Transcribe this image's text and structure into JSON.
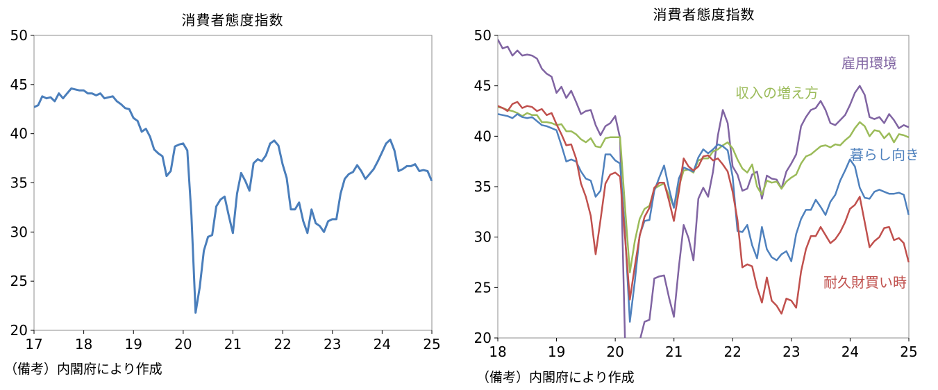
{
  "chart_data": [
    {
      "type": "line",
      "title": "消費者態度指数",
      "xlabel": "",
      "ylabel": "",
      "ylim": [
        20,
        50
      ],
      "xlim": [
        17,
        25
      ],
      "y_ticks": [
        "50",
        "45",
        "40",
        "35",
        "30",
        "25",
        "20"
      ],
      "x_ticks": [
        "17",
        "18",
        "19",
        "20",
        "21",
        "22",
        "23",
        "24",
        "25"
      ],
      "grid": false,
      "legend": "none",
      "series": [
        {
          "color": "#4a7ebb",
          "x_start": 17.0,
          "x_step": 0.0833,
          "values": [
            42.7,
            42.9,
            43.8,
            43.6,
            43.7,
            43.3,
            44.1,
            43.6,
            44.1,
            44.6,
            44.5,
            44.4,
            44.4,
            44.1,
            44.1,
            43.9,
            44.1,
            43.6,
            43.7,
            43.8,
            43.3,
            43.0,
            42.6,
            42.5,
            41.6,
            41.3,
            40.2,
            40.5,
            39.7,
            38.4,
            38.0,
            37.7,
            35.7,
            36.2,
            38.7,
            38.9,
            39.0,
            38.3,
            31.7,
            21.8,
            24.4,
            28.1,
            29.5,
            29.7,
            32.6,
            33.3,
            33.6,
            31.7,
            29.9,
            33.9,
            36.0,
            35.2,
            34.2,
            37.0,
            37.4,
            37.2,
            37.8,
            39.0,
            39.3,
            38.8,
            36.9,
            35.5,
            32.3,
            32.3,
            33.0,
            31.1,
            29.9,
            32.3,
            30.9,
            30.6,
            30.0,
            31.1,
            31.3,
            31.3,
            33.9,
            35.4,
            35.9,
            36.1,
            36.8,
            36.2,
            35.4,
            35.9,
            36.4,
            37.2,
            38.1,
            39.0,
            39.4,
            38.3,
            36.2,
            36.4,
            36.7,
            36.7,
            36.9,
            36.2,
            36.3,
            36.2,
            35.2
          ]
        }
      ],
      "footnote": "（備考）内閣府により作成"
    },
    {
      "type": "line",
      "title": "消費者態度指数",
      "xlabel": "",
      "ylabel": "",
      "ylim": [
        20,
        50
      ],
      "xlim": [
        18,
        25
      ],
      "y_ticks": [
        "50",
        "45",
        "40",
        "35",
        "30",
        "25",
        "20"
      ],
      "x_ticks": [
        "18",
        "19",
        "20",
        "21",
        "22",
        "23",
        "24",
        "25"
      ],
      "grid": false,
      "legend": "inline labels",
      "series": [
        {
          "name": "雇用環境",
          "color": "#8064a2",
          "x_start": 18.0,
          "x_step": 0.0833,
          "values": [
            49.6,
            48.7,
            48.9,
            48.0,
            48.5,
            48.0,
            48.1,
            48.0,
            47.7,
            46.7,
            46.2,
            45.9,
            44.3,
            44.9,
            43.8,
            44.5,
            43.4,
            42.2,
            42.5,
            42.6,
            41.1,
            40.1,
            41.0,
            41.3,
            42.0,
            39.8,
            19.8,
            16.5,
            18.3,
            19.7,
            21.6,
            21.8,
            25.9,
            26.1,
            26.2,
            24.0,
            22.1,
            27.0,
            31.2,
            29.9,
            27.7,
            33.8,
            34.9,
            34.0,
            36.5,
            40.1,
            42.6,
            41.3,
            37.0,
            36.2,
            34.6,
            34.8,
            36.2,
            36.5,
            33.8,
            36.1,
            35.8,
            35.7,
            34.8,
            36.5,
            37.3,
            38.2,
            41.0,
            41.9,
            42.6,
            42.8,
            43.5,
            42.6,
            41.3,
            41.1,
            41.6,
            42.1,
            43.1,
            44.3,
            45.0,
            44.1,
            41.9,
            41.7,
            41.9,
            41.3,
            42.2,
            41.6,
            40.8,
            41.1,
            40.9
          ]
        },
        {
          "name": "収入の増え方",
          "color": "#9bbb59",
          "x_start": 18.0,
          "x_step": 0.0833,
          "values": [
            42.9,
            42.8,
            42.6,
            42.5,
            42.3,
            42.0,
            42.3,
            42.1,
            42.1,
            41.4,
            41.4,
            41.3,
            41.1,
            41.2,
            40.5,
            40.5,
            40.2,
            39.7,
            39.4,
            39.8,
            39.0,
            38.9,
            39.8,
            39.9,
            39.9,
            39.9,
            33.0,
            26.5,
            29.6,
            31.8,
            32.8,
            33.1,
            34.8,
            35.1,
            35.3,
            34.1,
            33.0,
            35.0,
            36.6,
            36.7,
            36.4,
            37.6,
            37.8,
            37.8,
            38.5,
            38.7,
            39.1,
            39.4,
            38.8,
            37.7,
            36.8,
            36.4,
            37.2,
            35.0,
            34.2,
            35.6,
            35.4,
            35.5,
            34.8,
            35.5,
            35.9,
            36.2,
            37.3,
            38.0,
            38.2,
            38.6,
            39.0,
            39.1,
            38.9,
            39.2,
            39.1,
            39.6,
            40.0,
            40.8,
            41.4,
            41.0,
            40.0,
            40.6,
            40.5,
            39.8,
            40.3,
            39.4,
            40.2,
            40.1,
            39.9
          ]
        },
        {
          "name": "暮らし向き",
          "color": "#4f81bd",
          "x_start": 18.0,
          "x_step": 0.0833,
          "values": [
            42.2,
            42.1,
            42.0,
            41.8,
            42.2,
            41.9,
            41.8,
            41.9,
            41.5,
            41.1,
            41.0,
            40.8,
            40.6,
            39.1,
            37.5,
            37.7,
            37.5,
            36.5,
            35.8,
            35.6,
            34.0,
            34.6,
            38.2,
            38.2,
            37.6,
            37.3,
            30.5,
            21.6,
            25.6,
            30.2,
            31.6,
            31.7,
            34.6,
            35.9,
            37.1,
            34.8,
            32.9,
            35.8,
            36.9,
            36.7,
            36.5,
            37.9,
            38.7,
            38.3,
            38.7,
            39.2,
            39.0,
            38.6,
            36.0,
            30.6,
            30.5,
            31.2,
            29.2,
            27.9,
            31.0,
            28.8,
            28.0,
            27.7,
            28.3,
            28.6,
            27.6,
            30.3,
            31.8,
            32.7,
            32.7,
            33.7,
            33.0,
            32.2,
            33.5,
            34.2,
            35.6,
            36.6,
            37.7,
            37.0,
            34.9,
            33.9,
            33.8,
            34.5,
            34.7,
            34.5,
            34.3,
            34.3,
            34.4,
            34.2,
            32.2
          ]
        },
        {
          "name": "耐久財買い時",
          "color": "#c0504d",
          "x_start": 18.0,
          "x_step": 0.0833,
          "values": [
            43.0,
            42.8,
            42.5,
            43.2,
            43.4,
            42.8,
            43.0,
            42.9,
            42.5,
            42.7,
            42.1,
            42.3,
            41.2,
            40.2,
            39.1,
            39.2,
            37.8,
            35.3,
            34.0,
            32.1,
            28.3,
            31.7,
            35.3,
            36.2,
            36.4,
            36.0,
            30.0,
            23.8,
            27.1,
            30.1,
            32.0,
            32.9,
            34.9,
            35.4,
            35.4,
            33.6,
            31.6,
            34.5,
            37.8,
            37.0,
            36.6,
            37.0,
            38.0,
            38.1,
            37.6,
            37.8,
            37.2,
            36.5,
            34.5,
            31.7,
            27.0,
            27.3,
            27.1,
            25.0,
            23.5,
            26.0,
            23.7,
            23.2,
            22.4,
            23.9,
            23.7,
            23.0,
            26.6,
            28.8,
            30.1,
            30.1,
            31.0,
            30.2,
            29.4,
            29.8,
            30.5,
            31.5,
            32.8,
            33.2,
            34.0,
            31.5,
            29.0,
            29.6,
            30.0,
            30.9,
            31.0,
            29.7,
            29.9,
            29.4,
            27.5
          ]
        }
      ],
      "footnote": "（備考）内閣府により作成"
    }
  ]
}
